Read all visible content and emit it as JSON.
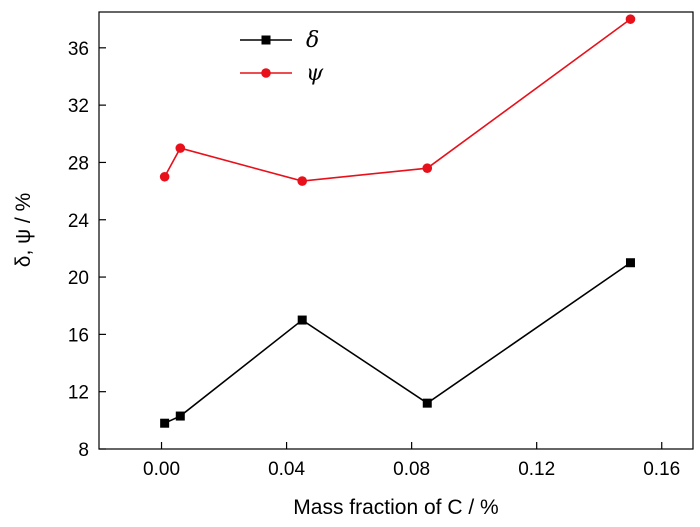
{
  "chart_data": {
    "type": "line",
    "title": "",
    "xlabel": "Mass fraction of C / %",
    "ylabel": "δ, ψ / %",
    "xlim": [
      -0.02,
      0.17
    ],
    "ylim": [
      8,
      38.5
    ],
    "x_ticks": [
      "0.00",
      "0.04",
      "0.08",
      "0.12",
      "0.16"
    ],
    "y_ticks": [
      "8",
      "12",
      "16",
      "20",
      "24",
      "28",
      "32",
      "36"
    ],
    "grid": false,
    "legend_position": "top-left",
    "series": [
      {
        "name": "δ",
        "color": "#000000",
        "marker": "square",
        "x": [
          0.001,
          0.006,
          0.045,
          0.085,
          0.15
        ],
        "y": [
          9.8,
          10.3,
          17.0,
          11.2,
          21.0
        ]
      },
      {
        "name": "ψ",
        "color": "#e8101a",
        "marker": "circle",
        "x": [
          0.001,
          0.006,
          0.045,
          0.085,
          0.15
        ],
        "y": [
          27.0,
          29.0,
          26.7,
          27.6,
          38.0
        ]
      }
    ]
  }
}
